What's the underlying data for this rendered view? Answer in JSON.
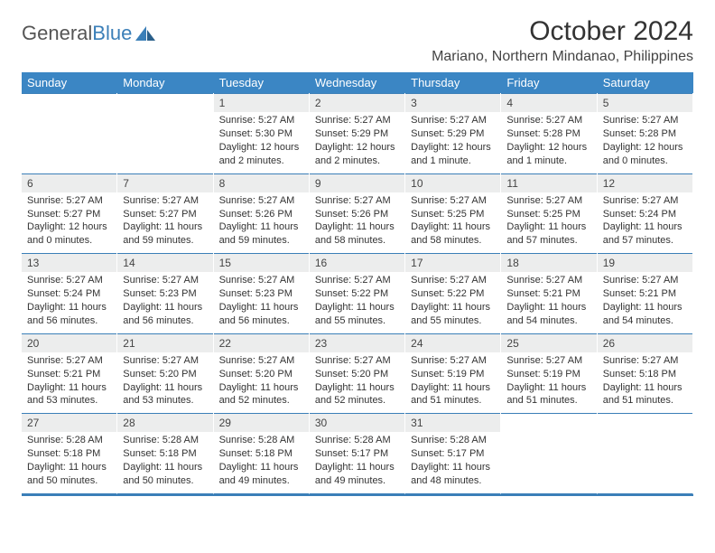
{
  "logo": {
    "word1": "General",
    "word2": "Blue",
    "color_gray": "#555555",
    "color_blue": "#3b7fb8"
  },
  "title": "October 2024",
  "location": "Mariano, Northern Mindanao, Philippines",
  "header_bg": "#3b86c4",
  "daynum_bg": "#eceded",
  "border_color": "#3b7fb8",
  "days_of_week": [
    "Sunday",
    "Monday",
    "Tuesday",
    "Wednesday",
    "Thursday",
    "Friday",
    "Saturday"
  ],
  "weeks": [
    [
      null,
      null,
      {
        "n": "1",
        "sunrise": "Sunrise: 5:27 AM",
        "sunset": "Sunset: 5:30 PM",
        "daylight": "Daylight: 12 hours and 2 minutes."
      },
      {
        "n": "2",
        "sunrise": "Sunrise: 5:27 AM",
        "sunset": "Sunset: 5:29 PM",
        "daylight": "Daylight: 12 hours and 2 minutes."
      },
      {
        "n": "3",
        "sunrise": "Sunrise: 5:27 AM",
        "sunset": "Sunset: 5:29 PM",
        "daylight": "Daylight: 12 hours and 1 minute."
      },
      {
        "n": "4",
        "sunrise": "Sunrise: 5:27 AM",
        "sunset": "Sunset: 5:28 PM",
        "daylight": "Daylight: 12 hours and 1 minute."
      },
      {
        "n": "5",
        "sunrise": "Sunrise: 5:27 AM",
        "sunset": "Sunset: 5:28 PM",
        "daylight": "Daylight: 12 hours and 0 minutes."
      }
    ],
    [
      {
        "n": "6",
        "sunrise": "Sunrise: 5:27 AM",
        "sunset": "Sunset: 5:27 PM",
        "daylight": "Daylight: 12 hours and 0 minutes."
      },
      {
        "n": "7",
        "sunrise": "Sunrise: 5:27 AM",
        "sunset": "Sunset: 5:27 PM",
        "daylight": "Daylight: 11 hours and 59 minutes."
      },
      {
        "n": "8",
        "sunrise": "Sunrise: 5:27 AM",
        "sunset": "Sunset: 5:26 PM",
        "daylight": "Daylight: 11 hours and 59 minutes."
      },
      {
        "n": "9",
        "sunrise": "Sunrise: 5:27 AM",
        "sunset": "Sunset: 5:26 PM",
        "daylight": "Daylight: 11 hours and 58 minutes."
      },
      {
        "n": "10",
        "sunrise": "Sunrise: 5:27 AM",
        "sunset": "Sunset: 5:25 PM",
        "daylight": "Daylight: 11 hours and 58 minutes."
      },
      {
        "n": "11",
        "sunrise": "Sunrise: 5:27 AM",
        "sunset": "Sunset: 5:25 PM",
        "daylight": "Daylight: 11 hours and 57 minutes."
      },
      {
        "n": "12",
        "sunrise": "Sunrise: 5:27 AM",
        "sunset": "Sunset: 5:24 PM",
        "daylight": "Daylight: 11 hours and 57 minutes."
      }
    ],
    [
      {
        "n": "13",
        "sunrise": "Sunrise: 5:27 AM",
        "sunset": "Sunset: 5:24 PM",
        "daylight": "Daylight: 11 hours and 56 minutes."
      },
      {
        "n": "14",
        "sunrise": "Sunrise: 5:27 AM",
        "sunset": "Sunset: 5:23 PM",
        "daylight": "Daylight: 11 hours and 56 minutes."
      },
      {
        "n": "15",
        "sunrise": "Sunrise: 5:27 AM",
        "sunset": "Sunset: 5:23 PM",
        "daylight": "Daylight: 11 hours and 56 minutes."
      },
      {
        "n": "16",
        "sunrise": "Sunrise: 5:27 AM",
        "sunset": "Sunset: 5:22 PM",
        "daylight": "Daylight: 11 hours and 55 minutes."
      },
      {
        "n": "17",
        "sunrise": "Sunrise: 5:27 AM",
        "sunset": "Sunset: 5:22 PM",
        "daylight": "Daylight: 11 hours and 55 minutes."
      },
      {
        "n": "18",
        "sunrise": "Sunrise: 5:27 AM",
        "sunset": "Sunset: 5:21 PM",
        "daylight": "Daylight: 11 hours and 54 minutes."
      },
      {
        "n": "19",
        "sunrise": "Sunrise: 5:27 AM",
        "sunset": "Sunset: 5:21 PM",
        "daylight": "Daylight: 11 hours and 54 minutes."
      }
    ],
    [
      {
        "n": "20",
        "sunrise": "Sunrise: 5:27 AM",
        "sunset": "Sunset: 5:21 PM",
        "daylight": "Daylight: 11 hours and 53 minutes."
      },
      {
        "n": "21",
        "sunrise": "Sunrise: 5:27 AM",
        "sunset": "Sunset: 5:20 PM",
        "daylight": "Daylight: 11 hours and 53 minutes."
      },
      {
        "n": "22",
        "sunrise": "Sunrise: 5:27 AM",
        "sunset": "Sunset: 5:20 PM",
        "daylight": "Daylight: 11 hours and 52 minutes."
      },
      {
        "n": "23",
        "sunrise": "Sunrise: 5:27 AM",
        "sunset": "Sunset: 5:20 PM",
        "daylight": "Daylight: 11 hours and 52 minutes."
      },
      {
        "n": "24",
        "sunrise": "Sunrise: 5:27 AM",
        "sunset": "Sunset: 5:19 PM",
        "daylight": "Daylight: 11 hours and 51 minutes."
      },
      {
        "n": "25",
        "sunrise": "Sunrise: 5:27 AM",
        "sunset": "Sunset: 5:19 PM",
        "daylight": "Daylight: 11 hours and 51 minutes."
      },
      {
        "n": "26",
        "sunrise": "Sunrise: 5:27 AM",
        "sunset": "Sunset: 5:18 PM",
        "daylight": "Daylight: 11 hours and 51 minutes."
      }
    ],
    [
      {
        "n": "27",
        "sunrise": "Sunrise: 5:28 AM",
        "sunset": "Sunset: 5:18 PM",
        "daylight": "Daylight: 11 hours and 50 minutes."
      },
      {
        "n": "28",
        "sunrise": "Sunrise: 5:28 AM",
        "sunset": "Sunset: 5:18 PM",
        "daylight": "Daylight: 11 hours and 50 minutes."
      },
      {
        "n": "29",
        "sunrise": "Sunrise: 5:28 AM",
        "sunset": "Sunset: 5:18 PM",
        "daylight": "Daylight: 11 hours and 49 minutes."
      },
      {
        "n": "30",
        "sunrise": "Sunrise: 5:28 AM",
        "sunset": "Sunset: 5:17 PM",
        "daylight": "Daylight: 11 hours and 49 minutes."
      },
      {
        "n": "31",
        "sunrise": "Sunrise: 5:28 AM",
        "sunset": "Sunset: 5:17 PM",
        "daylight": "Daylight: 11 hours and 48 minutes."
      },
      null,
      null
    ]
  ]
}
